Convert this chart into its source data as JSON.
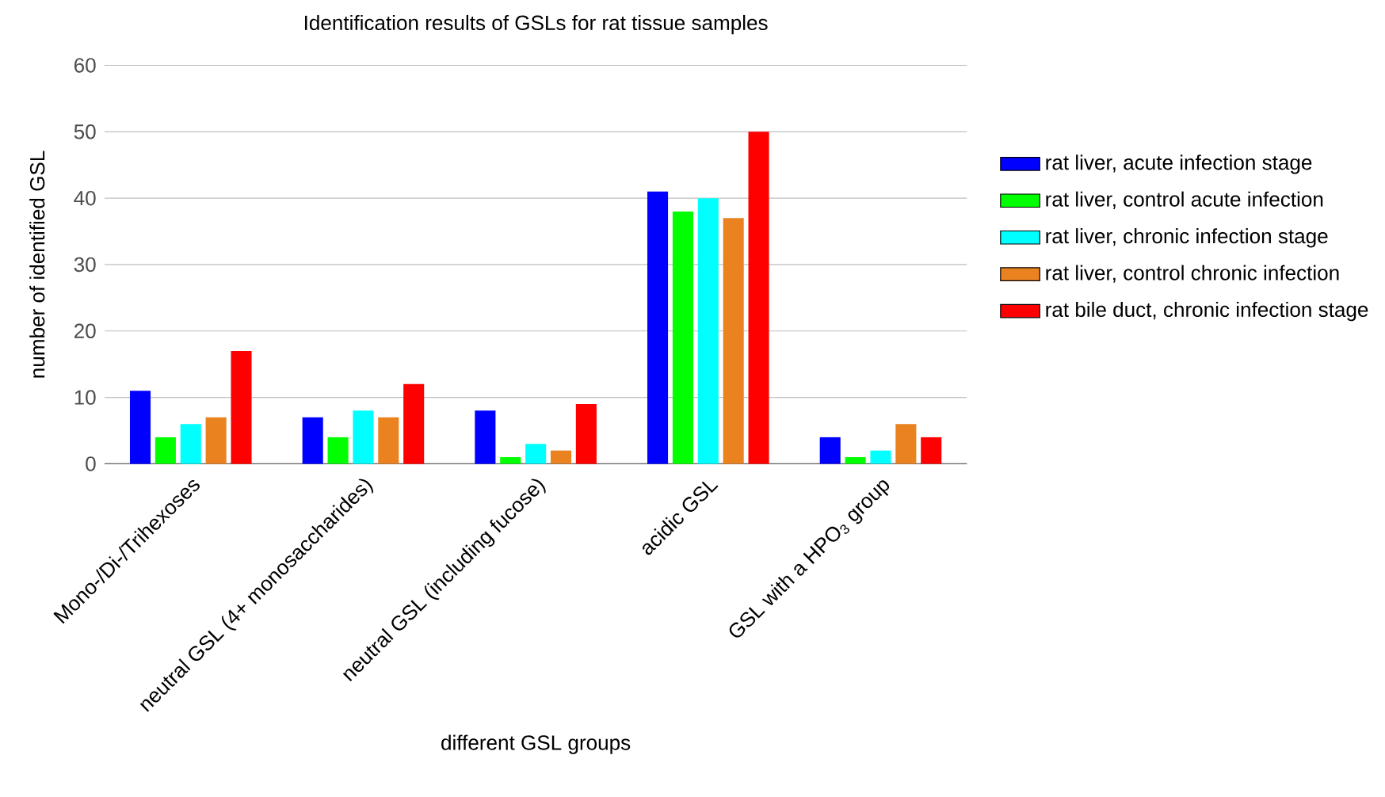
{
  "chart_data": {
    "type": "bar",
    "title": "Identification results of GSLs for rat tissue samples",
    "xlabel": "different GSL groups",
    "ylabel": "number of identified GSL",
    "categories": [
      "Mono-/Di-/Trihexoses",
      "neutral GSL (4+ monosaccharides)",
      "neutral GSL (including fucose)",
      "acidic GSL",
      "GSL with a HPO$_{3}$ group"
    ],
    "series": [
      {
        "name": "rat liver, acute infection stage",
        "color": "#0000ff",
        "values": [
          11,
          7,
          8,
          41,
          4
        ]
      },
      {
        "name": "rat liver, control acute infection",
        "color": "#00ff00",
        "values": [
          4,
          4,
          1,
          38,
          1
        ]
      },
      {
        "name": "rat liver, chronic infection stage",
        "color": "#00ffff",
        "values": [
          6,
          8,
          3,
          40,
          2
        ]
      },
      {
        "name": "rat liver, control chronic infection",
        "color": "#ea8220",
        "values": [
          7,
          7,
          2,
          37,
          6
        ]
      },
      {
        "name": "rat bile duct, chronic infection stage",
        "color": "#ff0000",
        "values": [
          17,
          12,
          9,
          50,
          4
        ]
      }
    ],
    "ylim": [
      0,
      60
    ],
    "yticks": [
      0,
      10,
      20,
      30,
      40,
      50,
      60
    ],
    "grid": "y",
    "legend": "right"
  }
}
